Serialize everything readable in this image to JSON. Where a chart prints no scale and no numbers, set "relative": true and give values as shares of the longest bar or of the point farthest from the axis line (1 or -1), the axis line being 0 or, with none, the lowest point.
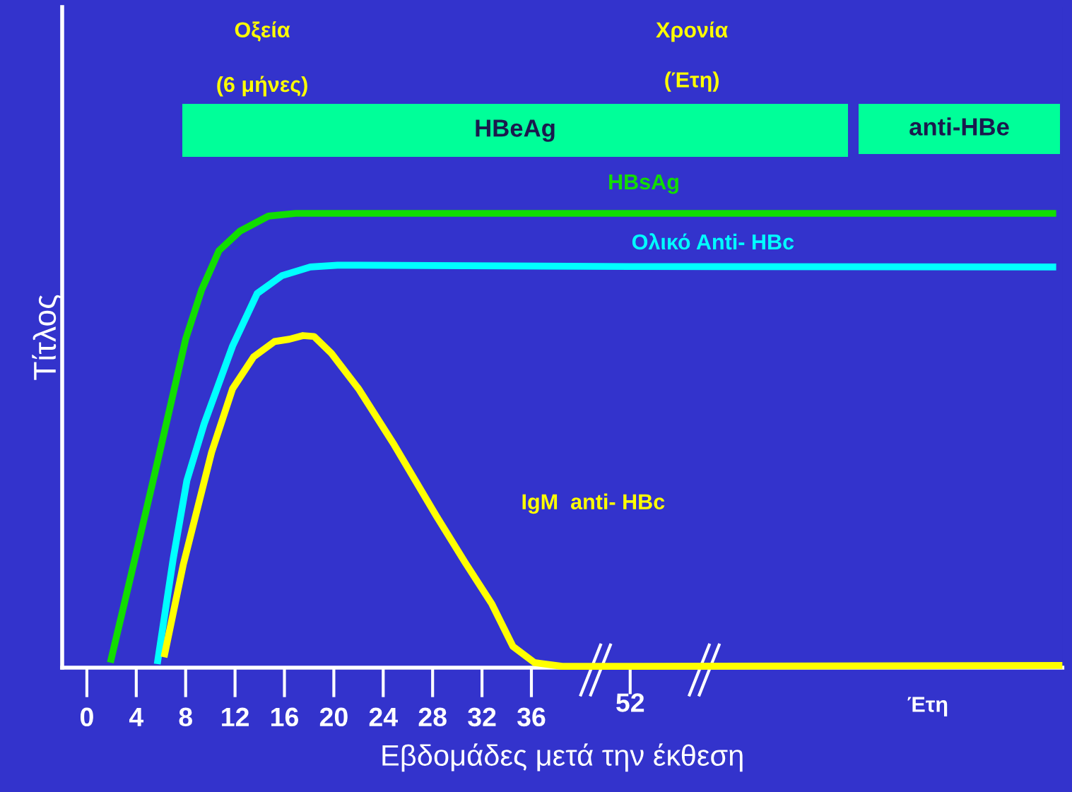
{
  "chart_data": {
    "type": "line",
    "relative": true,
    "xlabel": "Εβδομάδες μετά την έκθεση",
    "ylabel": "Τίτλος",
    "xlim": [
      -2,
      79
    ],
    "xticks": [
      0,
      4,
      8,
      12,
      16,
      20,
      24,
      28,
      32,
      36
    ],
    "grid": false,
    "legend": false,
    "marker": "none",
    "line_style": "solid",
    "series": [
      {
        "name": "HBsAg",
        "color": "#11dd00",
        "x": [
          1.9,
          3.9,
          5.9,
          8.0,
          9.3,
          10.7,
          12.4,
          14.7,
          16.9,
          44,
          78.5
        ],
        "values": [
          0.011,
          0.241,
          0.474,
          0.723,
          0.832,
          0.918,
          0.961,
          0.994,
          1.0,
          1.0,
          1.0
        ]
      },
      {
        "name": "Ολικό Anti- HBc",
        "color": "#00ffff",
        "x": [
          5.7,
          7.0,
          8.1,
          9.5,
          11.8,
          13.8,
          15.8,
          18.1,
          20.3,
          44,
          78.5
        ],
        "values": [
          0.008,
          0.241,
          0.412,
          0.537,
          0.708,
          0.824,
          0.863,
          0.882,
          0.886,
          0.883,
          0.882
        ]
      },
      {
        "name": "IgM  anti- HBc",
        "color": "#ffff00",
        "x": [
          6.25,
          7.8,
          10.1,
          11.8,
          13.5,
          15.2,
          16.4,
          17.5,
          18.4,
          19.8,
          22.0,
          24.9,
          28.3,
          30.6,
          32.8,
          34.5,
          36.25,
          38.5,
          44,
          79
        ],
        "values": [
          0.023,
          0.226,
          0.474,
          0.614,
          0.684,
          0.718,
          0.723,
          0.731,
          0.729,
          0.692,
          0.614,
          0.49,
          0.334,
          0.233,
          0.14,
          0.047,
          0.011,
          0.003,
          0.003,
          0.005
        ]
      }
    ],
    "annotations": [
      "Οξεία",
      "(6 μήνες)",
      "Χρονία",
      "(Έτη)",
      "Έτη",
      "52",
      "HBeAg",
      "anti-HBe"
    ]
  }
}
